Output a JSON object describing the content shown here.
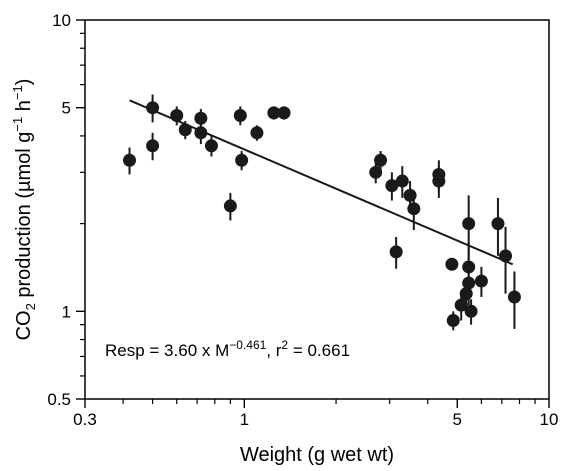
{
  "chart_data": {
    "type": "scatter",
    "xlabel": "Weight (g wet wt)",
    "ylabel": {
      "prefix": "CO",
      "sub": "2",
      "rest": " production (µmol g",
      "sup1": "−1",
      "mid": " h",
      "sup2": "−1",
      "suffix": ")"
    },
    "x_scale": "log",
    "y_scale": "log",
    "xlim": [
      0.3,
      10
    ],
    "ylim": [
      0.5,
      10
    ],
    "x_ticks": [
      {
        "value": 0.3,
        "label": "0.3"
      },
      {
        "value": 1,
        "label": "1"
      },
      {
        "value": 5,
        "label": "5"
      },
      {
        "value": 10,
        "label": "10"
      }
    ],
    "y_ticks": [
      {
        "value": 0.5,
        "label": "0.5"
      },
      {
        "value": 1,
        "label": "1"
      },
      {
        "value": 5,
        "label": "5"
      },
      {
        "value": 10,
        "label": "10"
      }
    ],
    "grid": false,
    "points": [
      {
        "x": 0.42,
        "y": 3.3,
        "err": 0.35
      },
      {
        "x": 0.5,
        "y": 5.0,
        "err": 0.55
      },
      {
        "x": 0.5,
        "y": 3.7,
        "err": 0.4
      },
      {
        "x": 0.6,
        "y": 4.7,
        "err": 0.35
      },
      {
        "x": 0.64,
        "y": 4.2,
        "err": 0.3
      },
      {
        "x": 0.72,
        "y": 4.6,
        "err": 0.35
      },
      {
        "x": 0.72,
        "y": 4.1,
        "err": 0.35
      },
      {
        "x": 0.78,
        "y": 3.7,
        "err": 0.3
      },
      {
        "x": 0.9,
        "y": 2.3,
        "err": 0.25
      },
      {
        "x": 0.97,
        "y": 4.7,
        "err": 0.35
      },
      {
        "x": 0.98,
        "y": 3.3,
        "err": 0.25
      },
      {
        "x": 1.1,
        "y": 4.1,
        "err": 0.25
      },
      {
        "x": 1.25,
        "y": 4.8,
        "err": 0.25
      },
      {
        "x": 1.35,
        "y": 4.8,
        "err": 0.25
      },
      {
        "x": 2.7,
        "y": 3.0,
        "err": 0.25
      },
      {
        "x": 2.8,
        "y": 3.3,
        "err": 0.25
      },
      {
        "x": 3.05,
        "y": 2.7,
        "err": 0.3
      },
      {
        "x": 3.15,
        "y": 1.6,
        "err": 0.2
      },
      {
        "x": 3.3,
        "y": 2.8,
        "err": 0.35
      },
      {
        "x": 3.5,
        "y": 2.5,
        "err": 0.3
      },
      {
        "x": 3.6,
        "y": 2.25,
        "err": 0.35
      },
      {
        "x": 4.35,
        "y": 2.95,
        "err": 0.35
      },
      {
        "x": 4.35,
        "y": 2.8,
        "err": 0.35
      },
      {
        "x": 4.8,
        "y": 1.45,
        "err": 0.06
      },
      {
        "x": 4.85,
        "y": 0.93,
        "err": 0.07
      },
      {
        "x": 5.15,
        "y": 1.05,
        "err": 0.12
      },
      {
        "x": 5.35,
        "y": 1.15,
        "err": 0.15
      },
      {
        "x": 5.45,
        "y": 2.0,
        "err": 0.5
      },
      {
        "x": 5.45,
        "y": 1.42,
        "err": 0.3
      },
      {
        "x": 5.45,
        "y": 1.25,
        "err": 0.2
      },
      {
        "x": 5.55,
        "y": 1.0,
        "err": 0.1
      },
      {
        "x": 6.0,
        "y": 1.27,
        "err": 0.15
      },
      {
        "x": 6.8,
        "y": 2.0,
        "err": 0.45
      },
      {
        "x": 7.2,
        "y": 1.55,
        "err": 0.4
      },
      {
        "x": 7.7,
        "y": 1.12,
        "err": 0.25
      }
    ],
    "fit_line": {
      "x": [
        0.42,
        7.6
      ],
      "y": [
        5.3,
        1.45
      ]
    },
    "annotation": {
      "part1": "Resp = 3.60 x M",
      "exp": "−0.461",
      "part2": ", r",
      "exp2": "2",
      "part3": " = 0.661"
    },
    "colors": {
      "marker": "#1a1a1a",
      "line": "#1a1a1a",
      "axes": "#000000"
    }
  }
}
